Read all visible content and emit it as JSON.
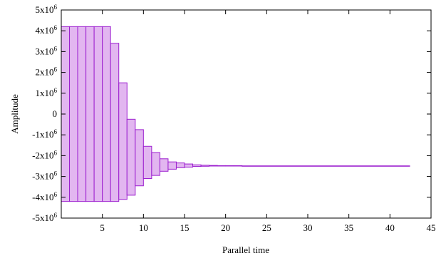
{
  "chart_data": {
    "type": "bar",
    "xlabel": "Parallel time",
    "ylabel": "Amplitude",
    "xlim": [
      0,
      45
    ],
    "ylim": [
      -5000000,
      5000000
    ],
    "x_ticks": [
      5,
      10,
      15,
      20,
      25,
      30,
      35,
      40,
      45
    ],
    "y_ticks": [
      {
        "value": 5000000,
        "mant": "5x10",
        "exp": "6"
      },
      {
        "value": 4000000,
        "mant": "4x10",
        "exp": "6"
      },
      {
        "value": 3000000,
        "mant": "3x10",
        "exp": "6"
      },
      {
        "value": 2000000,
        "mant": "2x10",
        "exp": "6"
      },
      {
        "value": 1000000,
        "mant": "1x10",
        "exp": "6"
      },
      {
        "value": 0,
        "mant": "0",
        "exp": ""
      },
      {
        "value": -1000000,
        "mant": "-1x10",
        "exp": "6"
      },
      {
        "value": -2000000,
        "mant": "-2x10",
        "exp": "6"
      },
      {
        "value": -3000000,
        "mant": "-3x10",
        "exp": "6"
      },
      {
        "value": -4000000,
        "mant": "-4x10",
        "exp": "6"
      },
      {
        "value": -5000000,
        "mant": "-5x10",
        "exp": "6"
      }
    ],
    "grid": false,
    "colors": {
      "bar_fill": "#e2b6f0",
      "bar_stroke": "#9c1fcf"
    },
    "bars": [
      {
        "x0": 0.0,
        "x1": 1.0,
        "high": 4200000,
        "low": -4200000
      },
      {
        "x0": 1.0,
        "x1": 2.0,
        "high": 4200000,
        "low": -4200000
      },
      {
        "x0": 2.0,
        "x1": 3.0,
        "high": 4200000,
        "low": -4200000
      },
      {
        "x0": 3.0,
        "x1": 4.0,
        "high": 4200000,
        "low": -4200000
      },
      {
        "x0": 4.0,
        "x1": 5.0,
        "high": 4200000,
        "low": -4200000
      },
      {
        "x0": 5.0,
        "x1": 6.0,
        "high": 4200000,
        "low": -4200000
      },
      {
        "x0": 6.0,
        "x1": 7.0,
        "high": 3400000,
        "low": -4200000
      },
      {
        "x0": 7.0,
        "x1": 8.0,
        "high": 1500000,
        "low": -4100000
      },
      {
        "x0": 8.0,
        "x1": 9.0,
        "high": -250000,
        "low": -3900000
      },
      {
        "x0": 9.0,
        "x1": 10.0,
        "high": -750000,
        "low": -3450000
      },
      {
        "x0": 10.0,
        "x1": 11.0,
        "high": -1550000,
        "low": -3100000
      },
      {
        "x0": 11.0,
        "x1": 12.0,
        "high": -1850000,
        "low": -2950000
      },
      {
        "x0": 12.0,
        "x1": 13.0,
        "high": -2150000,
        "low": -2750000
      },
      {
        "x0": 13.0,
        "x1": 14.0,
        "high": -2300000,
        "low": -2650000
      },
      {
        "x0": 14.0,
        "x1": 15.0,
        "high": -2350000,
        "low": -2580000
      },
      {
        "x0": 15.0,
        "x1": 16.0,
        "high": -2400000,
        "low": -2550000
      },
      {
        "x0": 16.0,
        "x1": 17.0,
        "high": -2440000,
        "low": -2520000
      },
      {
        "x0": 17.0,
        "x1": 18.0,
        "high": -2460000,
        "low": -2510000
      },
      {
        "x0": 18.0,
        "x1": 19.0,
        "high": -2470000,
        "low": -2500000
      },
      {
        "x0": 19.0,
        "x1": 20.0,
        "high": -2480000,
        "low": -2500000
      },
      {
        "x0": 20.0,
        "x1": 21.0,
        "high": -2480000,
        "low": -2490000
      },
      {
        "x0": 21.0,
        "x1": 22.0,
        "high": -2480000,
        "low": -2490000
      },
      {
        "x0": 22.0,
        "x1": 42.4,
        "high": -2490000,
        "low": -2490000
      }
    ]
  }
}
